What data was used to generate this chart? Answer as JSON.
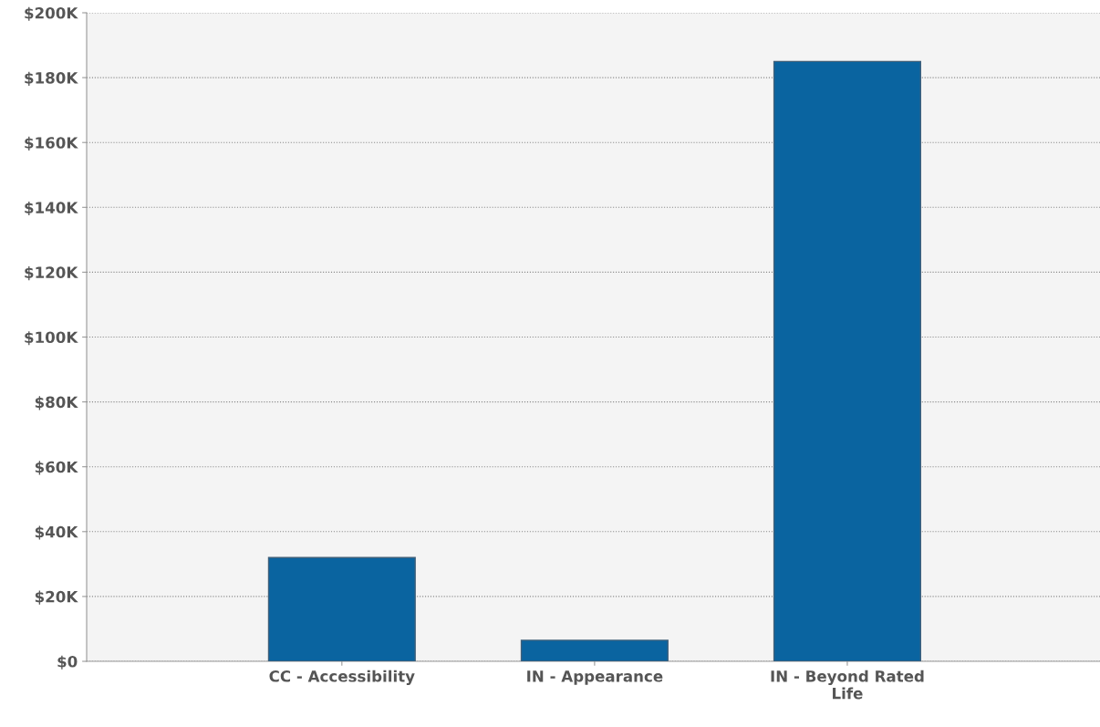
{
  "chart_data": {
    "type": "bar",
    "categories": [
      "CC - Accessibility",
      "IN - Appearance",
      "IN - Beyond Rated\nLife"
    ],
    "values": [
      32000,
      6500,
      185000
    ],
    "color": "#0a64a0",
    "ylim": [
      0,
      200000
    ],
    "yticks": [
      {
        "value": 0,
        "label": "$0"
      },
      {
        "value": 20000,
        "label": "$20K"
      },
      {
        "value": 40000,
        "label": "$40K"
      },
      {
        "value": 60000,
        "label": "$60K"
      },
      {
        "value": 80000,
        "label": "$80K"
      },
      {
        "value": 100000,
        "label": "$100K"
      },
      {
        "value": 120000,
        "label": "$120K"
      },
      {
        "value": 140000,
        "label": "$140K"
      },
      {
        "value": 160000,
        "label": "$160K"
      },
      {
        "value": 180000,
        "label": "$180K"
      },
      {
        "value": 200000,
        "label": "$200K"
      }
    ],
    "grid": "y"
  }
}
